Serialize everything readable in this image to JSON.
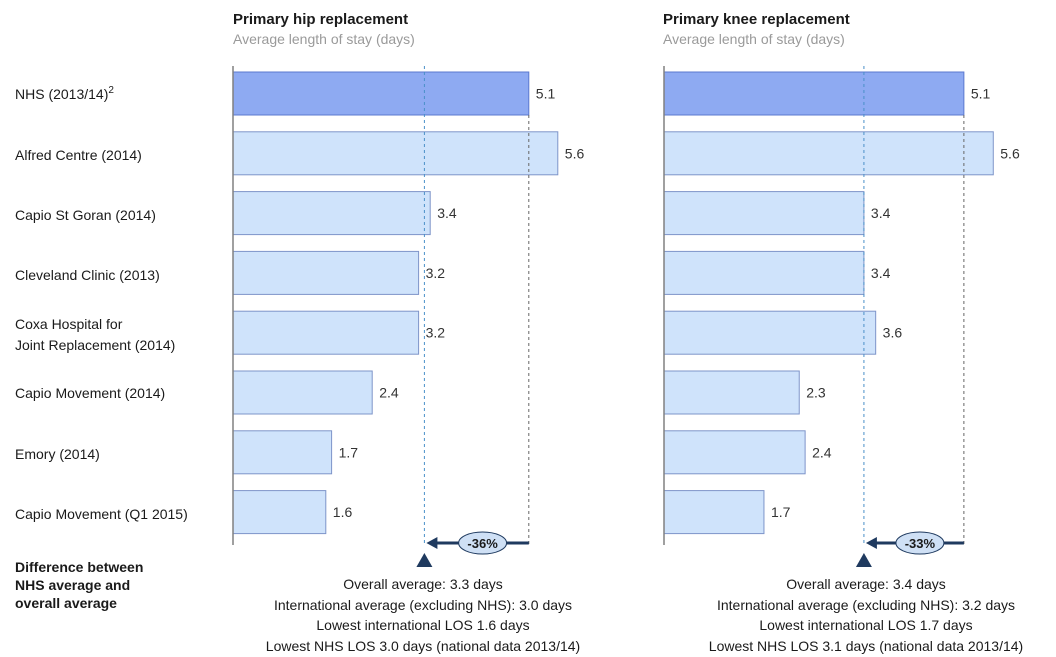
{
  "chart_data": [
    {
      "type": "bar",
      "title": "Primary hip replacement",
      "subtitle": "Average  length of stay (days)",
      "categories": [
        "NHS (2013/14)",
        "Alfred Centre (2014)",
        "Capio St Goran (2014)",
        "Cleveland  Clinic (2013)",
        "Coxa Hospital for Joint Replacement (2014)",
        "Capio Movement  (2014)",
        "Emory (2014)",
        "Capio Movement  (Q1 2015)"
      ],
      "values": [
        5.1,
        5.6,
        3.4,
        3.2,
        3.2,
        2.4,
        1.7,
        1.6
      ],
      "value_labels": [
        "5.1",
        "5.6",
        "3.4",
        "3.2",
        "3.2",
        "2.4",
        "1.7",
        "1.6"
      ],
      "highlight_index": 0,
      "overall_average": 3.3,
      "difference_label": "-36%",
      "summary": [
        "Overall  average:  3.3 days",
        "International average  (excluding NHS): 3.0 days",
        "Lowest international LOS 1.6 days",
        "Lowest NHS LOS 3.0 days (national data 2013/14)"
      ]
    },
    {
      "type": "bar",
      "title": "Primary knee replacement",
      "subtitle": "Average  length of stay (days)",
      "categories": [
        "NHS (2013/14)",
        "Alfred Centre (2014)",
        "Capio St Goran (2014)",
        "Cleveland  Clinic (2013)",
        "Coxa Hospital for Joint Replacement (2014)",
        "Capio Movement  (2014)",
        "Emory (2014)",
        "Capio Movement  (Q1 2015)"
      ],
      "values": [
        5.1,
        5.6,
        3.4,
        3.4,
        3.6,
        2.3,
        2.4,
        1.7
      ],
      "value_labels": [
        "5.1",
        "5.6",
        "3.4",
        "3.4",
        "3.6",
        "2.3",
        "2.4",
        "1.7"
      ],
      "highlight_index": 0,
      "overall_average": 3.4,
      "difference_label": "-33%",
      "summary": [
        "Overall  average:  3.4 days",
        "International average  (excluding NHS): 3.2 days",
        "Lowest international LOS 1.7 days",
        "Lowest NHS LOS 3.1 days (national data 2013/14)"
      ]
    }
  ],
  "labels": {
    "rows": [
      "NHS (2013/14)",
      "Alfred Centre (2014)",
      "Capio St Goran (2014)",
      "Cleveland  Clinic (2013)",
      "Coxa Hospital for",
      "Joint Replacement (2014)",
      "Capio Movement  (2014)",
      "Emory (2014)",
      "Capio Movement  (Q1 2015)"
    ],
    "nhs_superscript": "2",
    "difference_note": [
      "Difference between",
      "NHS average and",
      "overall average"
    ]
  },
  "colors": {
    "highlight_fill": "#8eaaf2",
    "highlight_stroke": "#5b78cf",
    "bar_fill": "#cfe3fb",
    "bar_stroke": "#7d94c9",
    "axis": "#808080",
    "dashed_average": "#4a90c8",
    "dashed_nhs": "#666666",
    "arrow": "#1f3a5f",
    "pct_fill": "#cfe0f5"
  }
}
